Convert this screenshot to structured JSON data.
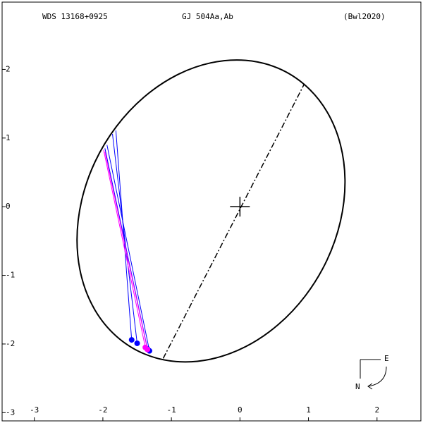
{
  "chart_data": {
    "type": "orbit",
    "title": "WDS 13168+0925",
    "subtitle": "GJ  504Aa,Ab",
    "reference": "(Bwl2020)",
    "xlim": [
      -3.47,
      2.64
    ],
    "ylim": [
      -3.12,
      2.98
    ],
    "xticks": [
      -3,
      -2,
      -1,
      0,
      1,
      2
    ],
    "yticks": [
      -3,
      -2,
      -1,
      0,
      1,
      2
    ],
    "orbit": {
      "color": "#000000",
      "x": [
        1.533,
        1.466,
        1.271,
        0.96,
        0.556,
        0.084,
        -0.422,
        -0.928,
        -1.4,
        -1.804,
        -2.115,
        -2.31,
        -2.377,
        -2.31,
        -2.115,
        -1.804,
        -1.4,
        -0.928,
        -0.422,
        0.084,
        0.556,
        0.96,
        1.271,
        1.466
      ],
      "y": [
        0.359,
        -0.214,
        -0.776,
        -1.29,
        -1.72,
        -2.038,
        -2.22,
        -2.256,
        -2.142,
        -1.886,
        -1.506,
        -1.028,
        -0.483,
        0.09,
        0.652,
        1.166,
        1.596,
        1.914,
        2.096,
        2.132,
        2.018,
        1.762,
        1.382,
        0.904
      ]
    },
    "node_line": {
      "x": [
        -1.12,
        0.94
      ],
      "y": [
        -2.21,
        1.79
      ]
    },
    "series": [
      {
        "color": "#0000ff",
        "x": [
          -1.58,
          -1.5,
          -1.32,
          -1.35
        ],
        "y": [
          -1.94,
          -1.99,
          -2.1,
          -2.07
        ],
        "predicted_x": [
          -1.81,
          -1.86,
          -1.94,
          -1.97
        ],
        "predicted_y": [
          1.11,
          1.06,
          0.9,
          0.85
        ]
      },
      {
        "color": "#ff00ff",
        "x": [
          -1.38,
          -1.35
        ],
        "y": [
          -2.05,
          -2.08
        ],
        "predicted_x": [
          -1.99,
          -1.97
        ],
        "predicted_y": [
          0.83,
          0.8
        ]
      }
    ],
    "compass": {
      "east": "E",
      "north": "N"
    }
  }
}
